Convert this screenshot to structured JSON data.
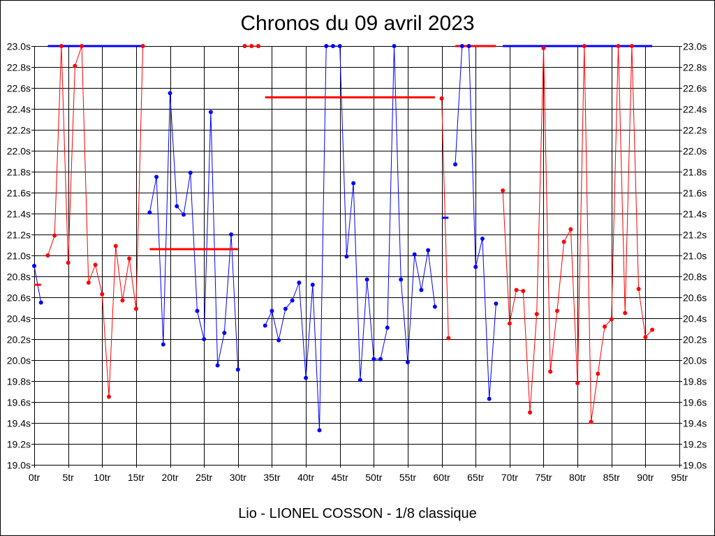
{
  "chart_data": {
    "type": "line",
    "title": "Chronos du 09 avril 2023",
    "caption": "Lio - LIONEL COSSON - 1/8 classique",
    "xlim": [
      0,
      95
    ],
    "ylim": [
      19.0,
      23.0
    ],
    "grid": true,
    "x_tick_labels": [
      "0tr",
      "5tr",
      "10tr",
      "15tr",
      "20tr",
      "25tr",
      "30tr",
      "35tr",
      "40tr",
      "45tr",
      "50tr",
      "55tr",
      "60tr",
      "65tr",
      "70tr",
      "75tr",
      "80tr",
      "85tr",
      "90tr",
      "95tr"
    ],
    "y_tick_labels": [
      "19.0s",
      "19.2s",
      "19.4s",
      "19.6s",
      "19.8s",
      "20.0s",
      "20.2s",
      "20.4s",
      "20.6s",
      "20.8s",
      "21.0s",
      "21.2s",
      "21.4s",
      "21.6s",
      "21.8s",
      "22.0s",
      "22.2s",
      "22.4s",
      "22.6s",
      "22.8s",
      "23.0s"
    ],
    "colors": {
      "blue": "#0000ff",
      "red": "#ff0000"
    },
    "stints": [
      {
        "color": "blue",
        "x": [
          0,
          1
        ],
        "y": [
          20.9,
          20.55
        ],
        "average": 20.72,
        "average_color": "red"
      },
      {
        "color": "red",
        "x": [
          2,
          3,
          4,
          5,
          6,
          7,
          8,
          9,
          10,
          11,
          12,
          13,
          14,
          15,
          16
        ],
        "y": [
          21.0,
          21.19,
          23.0,
          20.93,
          22.81,
          23.0,
          20.74,
          20.91,
          20.63,
          19.65,
          21.09,
          20.57,
          20.97,
          20.49,
          23.0
        ],
        "average": 23.0,
        "average_color": "blue"
      },
      {
        "color": "blue",
        "x": [
          17,
          18,
          19,
          20,
          21,
          22,
          23,
          24,
          25,
          26,
          27,
          28,
          29,
          30
        ],
        "y": [
          21.41,
          21.75,
          20.15,
          22.55,
          21.47,
          21.39,
          21.79,
          20.47,
          20.2,
          22.37,
          19.95,
          20.26,
          21.2,
          19.91
        ],
        "average": 21.06,
        "average_color": "red"
      },
      {
        "color": "red",
        "x": [
          31,
          32,
          33
        ],
        "y": [
          23.0,
          23.0,
          23.0
        ]
      },
      {
        "color": "blue",
        "x": [
          34,
          35,
          36,
          37,
          38,
          39,
          40,
          41,
          42,
          43,
          44,
          45,
          46,
          47,
          48,
          49,
          50,
          51,
          52,
          53,
          54,
          55,
          56,
          57,
          58,
          59
        ],
        "y": [
          20.33,
          20.47,
          20.19,
          20.49,
          20.57,
          20.74,
          19.83,
          20.72,
          19.33,
          23.0,
          23.0,
          23.0,
          20.99,
          21.69,
          19.81,
          20.77,
          20.01,
          20.01,
          20.31,
          23.0,
          20.77,
          19.98,
          21.01,
          20.67,
          21.05,
          20.51
        ],
        "average": 22.51,
        "average_color": "red"
      },
      {
        "color": "red",
        "x": [
          60,
          61
        ],
        "y": [
          22.5,
          20.21
        ],
        "average": 21.36,
        "average_color": "blue"
      },
      {
        "color": "blue",
        "x": [
          62,
          63,
          64,
          65,
          66,
          67,
          68
        ],
        "y": [
          21.87,
          23.0,
          23.0,
          20.89,
          21.16,
          19.63,
          20.54
        ],
        "average": 23.0,
        "average_color": "red"
      },
      {
        "color": "red",
        "x": [
          69,
          70,
          71,
          72,
          73,
          74,
          75,
          76,
          77,
          78,
          79,
          80,
          81,
          82,
          83,
          84,
          85,
          86,
          87,
          88,
          89,
          90,
          91
        ],
        "y": [
          21.62,
          20.35,
          20.67,
          20.66,
          19.5,
          20.44,
          22.98,
          19.89,
          20.47,
          21.13,
          21.25,
          19.78,
          23.0,
          19.41,
          19.87,
          20.32,
          20.39,
          23.0,
          20.45,
          23.0,
          20.68,
          20.22,
          20.29
        ],
        "average": 23.0,
        "average_color": "blue"
      }
    ]
  }
}
